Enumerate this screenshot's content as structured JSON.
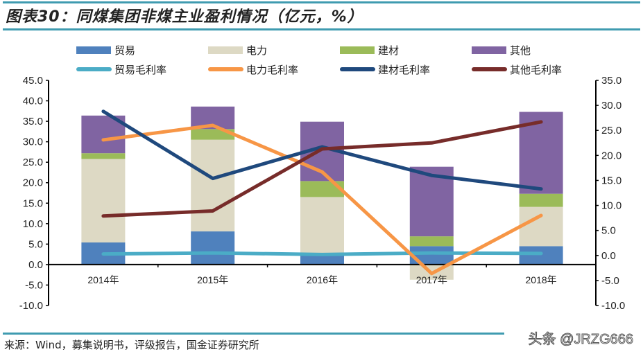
{
  "title": "图表30：同煤集团非煤主业盈利情况（亿元，%）",
  "source": "来源：Wind，募集说明书，评级报告，国金证券研究所",
  "watermark": "头条 @JRZG666",
  "chart_data": {
    "type": "bar+line",
    "categories": [
      "2014年",
      "2015年",
      "2016年",
      "2017年",
      "2018年"
    ],
    "bar_series": [
      {
        "name": "贸易",
        "color": "#4f81bd",
        "values": [
          5.4,
          8.1,
          2.4,
          4.5,
          4.5
        ]
      },
      {
        "name": "电力",
        "color": "#ddd9c4",
        "values": [
          20.4,
          22.4,
          14.1,
          -3.7,
          9.6
        ]
      },
      {
        "name": "建材",
        "color": "#9bbb59",
        "values": [
          1.4,
          2.6,
          3.9,
          2.4,
          3.2
        ]
      },
      {
        "name": "其他",
        "color": "#8064a2",
        "values": [
          9.2,
          5.5,
          14.5,
          17.0,
          20.0
        ]
      }
    ],
    "line_series": [
      {
        "name": "贸易毛利率",
        "color": "#4bacc6",
        "values": [
          0.3,
          0.5,
          0.2,
          0.5,
          0.4
        ]
      },
      {
        "name": "电力毛利率",
        "color": "#f79646",
        "values": [
          23.1,
          26.0,
          16.7,
          -3.6,
          8.0
        ]
      },
      {
        "name": "建材毛利率",
        "color": "#1f497d",
        "values": [
          28.8,
          15.4,
          21.7,
          16.0,
          13.3
        ]
      },
      {
        "name": "其他毛利率",
        "color": "#772c2a",
        "values": [
          7.9,
          8.9,
          21.3,
          22.5,
          26.7
        ]
      }
    ],
    "y_left": {
      "range": [
        -10,
        45
      ],
      "ticks": [
        "45.0",
        "40.0",
        "35.0",
        "30.0",
        "25.0",
        "20.0",
        "15.0",
        "10.0",
        "5.0",
        "0.0",
        "-5.0",
        "-10.0"
      ]
    },
    "y_right": {
      "range": [
        -10,
        35
      ],
      "ticks": [
        "35.0",
        "30.0",
        "25.0",
        "20.0",
        "15.0",
        "10.0",
        "5.0",
        "0.0",
        "-5.0",
        "-10.0"
      ]
    },
    "grid": false,
    "legend": "top"
  }
}
